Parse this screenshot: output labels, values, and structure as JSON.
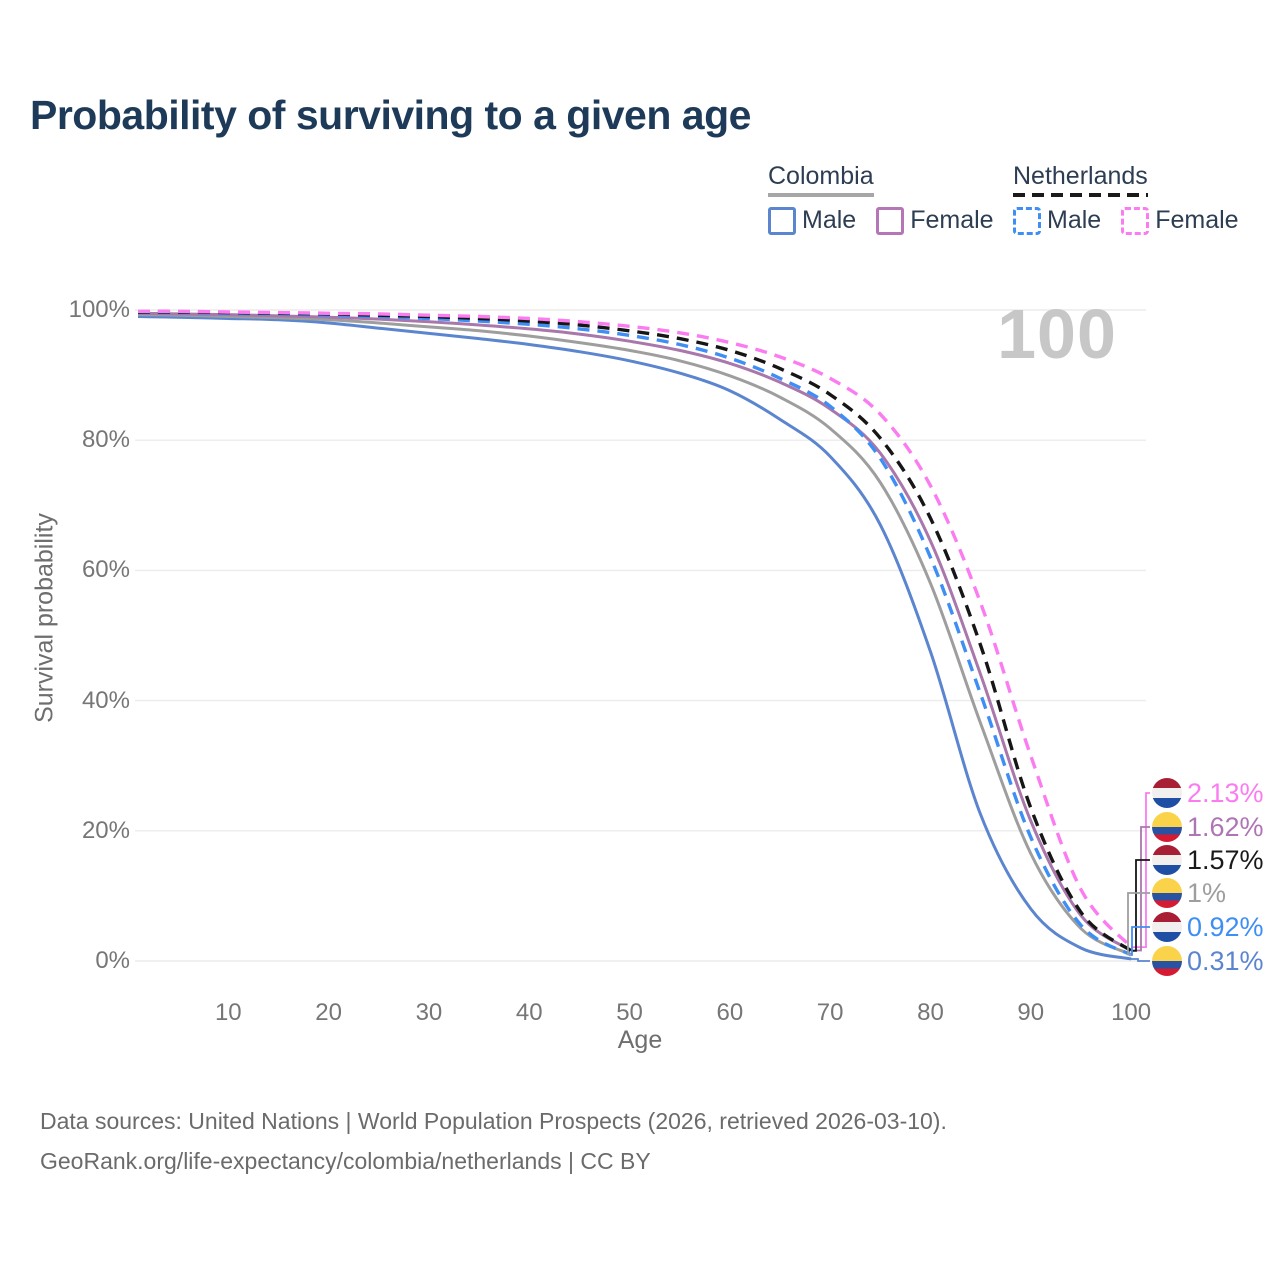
{
  "title": "Probability of surviving to a given age",
  "watermark_label": "100",
  "legend": {
    "groups": [
      {
        "country": "Colombia",
        "line_style": "solid",
        "line_color": "#a6a6a6",
        "items": [
          {
            "label": "Male",
            "color": "#5b85cf",
            "dashed": false
          },
          {
            "label": "Female",
            "color": "#b476b4",
            "dashed": false
          }
        ]
      },
      {
        "country": "Netherlands",
        "line_style": "dashed",
        "line_color": "#1a1a1a",
        "items": [
          {
            "label": "Male",
            "color": "#3f8ef4",
            "dashed": true
          },
          {
            "label": "Female",
            "color": "#fb7cf1",
            "dashed": true
          }
        ]
      }
    ]
  },
  "flags": {
    "colombia": [
      "#fbd34b",
      "#2a52a3",
      "#d61a32"
    ],
    "netherlands": [
      "#a81f35",
      "#f2f0ef",
      "#1e4fa4"
    ]
  },
  "chart_data": {
    "type": "line",
    "title": "Probability of surviving to a given age",
    "xlabel": "Age",
    "ylabel": "Survival probability",
    "xlim": [
      0,
      100
    ],
    "ylim": [
      0,
      100
    ],
    "grid": "horizontal-only",
    "legend_position": "top-right",
    "x_tick_values": [
      10,
      20,
      30,
      40,
      50,
      60,
      70,
      80,
      90,
      100
    ],
    "x_tick_labels": [
      "10",
      "20",
      "30",
      "40",
      "50",
      "60",
      "70",
      "80",
      "90",
      "100"
    ],
    "y_tick_values": [
      0,
      20,
      40,
      60,
      80,
      100
    ],
    "y_tick_labels": [
      "0%",
      "20%",
      "40%",
      "60%",
      "80%",
      "100%"
    ],
    "x": [
      1,
      5,
      10,
      15,
      20,
      25,
      30,
      35,
      40,
      45,
      50,
      55,
      60,
      65,
      70,
      75,
      80,
      85,
      90,
      95,
      100
    ],
    "series": [
      {
        "name": "Colombia Male",
        "country": "colombia",
        "sex": "male",
        "color": "#5b85cf",
        "label_color": "#5b85cf",
        "dashed": false,
        "end_label": "0.31%",
        "end_value": 0.31,
        "values": [
          99.0,
          98.9,
          98.7,
          98.5,
          98.0,
          97.2,
          96.4,
          95.6,
          94.7,
          93.6,
          92.2,
          90.3,
          87.6,
          83.2,
          77.5,
          67.0,
          47.5,
          22.5,
          8.0,
          2.0,
          0.31
        ]
      },
      {
        "name": "Colombia Both sexes",
        "country": "colombia",
        "sex": "both",
        "color": "#9e9e9e",
        "label_color": "#9e9e9e",
        "dashed": false,
        "end_label": "1%",
        "end_value": 1.0,
        "values": [
          99.3,
          99.2,
          99.0,
          98.8,
          98.5,
          98.0,
          97.4,
          96.8,
          96.0,
          95.0,
          93.8,
          92.2,
          89.9,
          86.6,
          81.8,
          73.5,
          58.0,
          36.5,
          16.5,
          5.0,
          1.0
        ]
      },
      {
        "name": "Colombia Female",
        "country": "colombia",
        "sex": "female",
        "color": "#a977ab",
        "label_color": "#ae75b5",
        "dashed": false,
        "end_label": "1.62%",
        "end_value": 1.62,
        "values": [
          99.5,
          99.4,
          99.3,
          99.1,
          98.9,
          98.6,
          98.2,
          97.7,
          97.1,
          96.3,
          95.2,
          93.8,
          91.8,
          88.9,
          84.8,
          78.0,
          64.5,
          44.0,
          21.5,
          7.0,
          1.62
        ]
      },
      {
        "name": "Netherlands Male",
        "country": "netherlands",
        "sex": "male",
        "color": "#3f8ef4",
        "label_color": "#3e8ef4",
        "dashed": true,
        "end_label": "0.92%",
        "end_value": 0.92,
        "values": [
          99.6,
          99.6,
          99.5,
          99.4,
          99.2,
          99.0,
          98.7,
          98.3,
          97.8,
          97.1,
          96.1,
          94.7,
          92.6,
          89.5,
          85.2,
          77.2,
          62.0,
          41.0,
          19.0,
          5.5,
          0.92
        ]
      },
      {
        "name": "Netherlands Both sexes",
        "country": "netherlands",
        "sex": "both",
        "color": "#161616",
        "label_color": "#1a1a1a",
        "dashed": true,
        "end_label": "1.57%",
        "end_value": 1.57,
        "values": [
          99.7,
          99.7,
          99.6,
          99.5,
          99.4,
          99.2,
          99.0,
          98.7,
          98.3,
          97.7,
          96.8,
          95.6,
          93.8,
          91.0,
          87.0,
          80.3,
          68.0,
          48.5,
          23.5,
          7.5,
          1.57
        ]
      },
      {
        "name": "Netherlands Female",
        "country": "netherlands",
        "sex": "female",
        "color": "#fb7cf1",
        "label_color": "#fb7cf1",
        "dashed": true,
        "end_label": "2.13%",
        "end_value": 2.13,
        "values": [
          99.8,
          99.8,
          99.7,
          99.6,
          99.5,
          99.4,
          99.2,
          99.0,
          98.7,
          98.2,
          97.5,
          96.5,
          95.0,
          92.8,
          89.5,
          84.0,
          73.0,
          55.0,
          31.5,
          11.0,
          2.13
        ]
      }
    ]
  },
  "footer": {
    "line1": "Data sources: United Nations | World Population Prospects (2026, retrieved 2026-03-10).",
    "line2": "GeoRank.org/life-expectancy/colombia/netherlands | CC BY"
  }
}
